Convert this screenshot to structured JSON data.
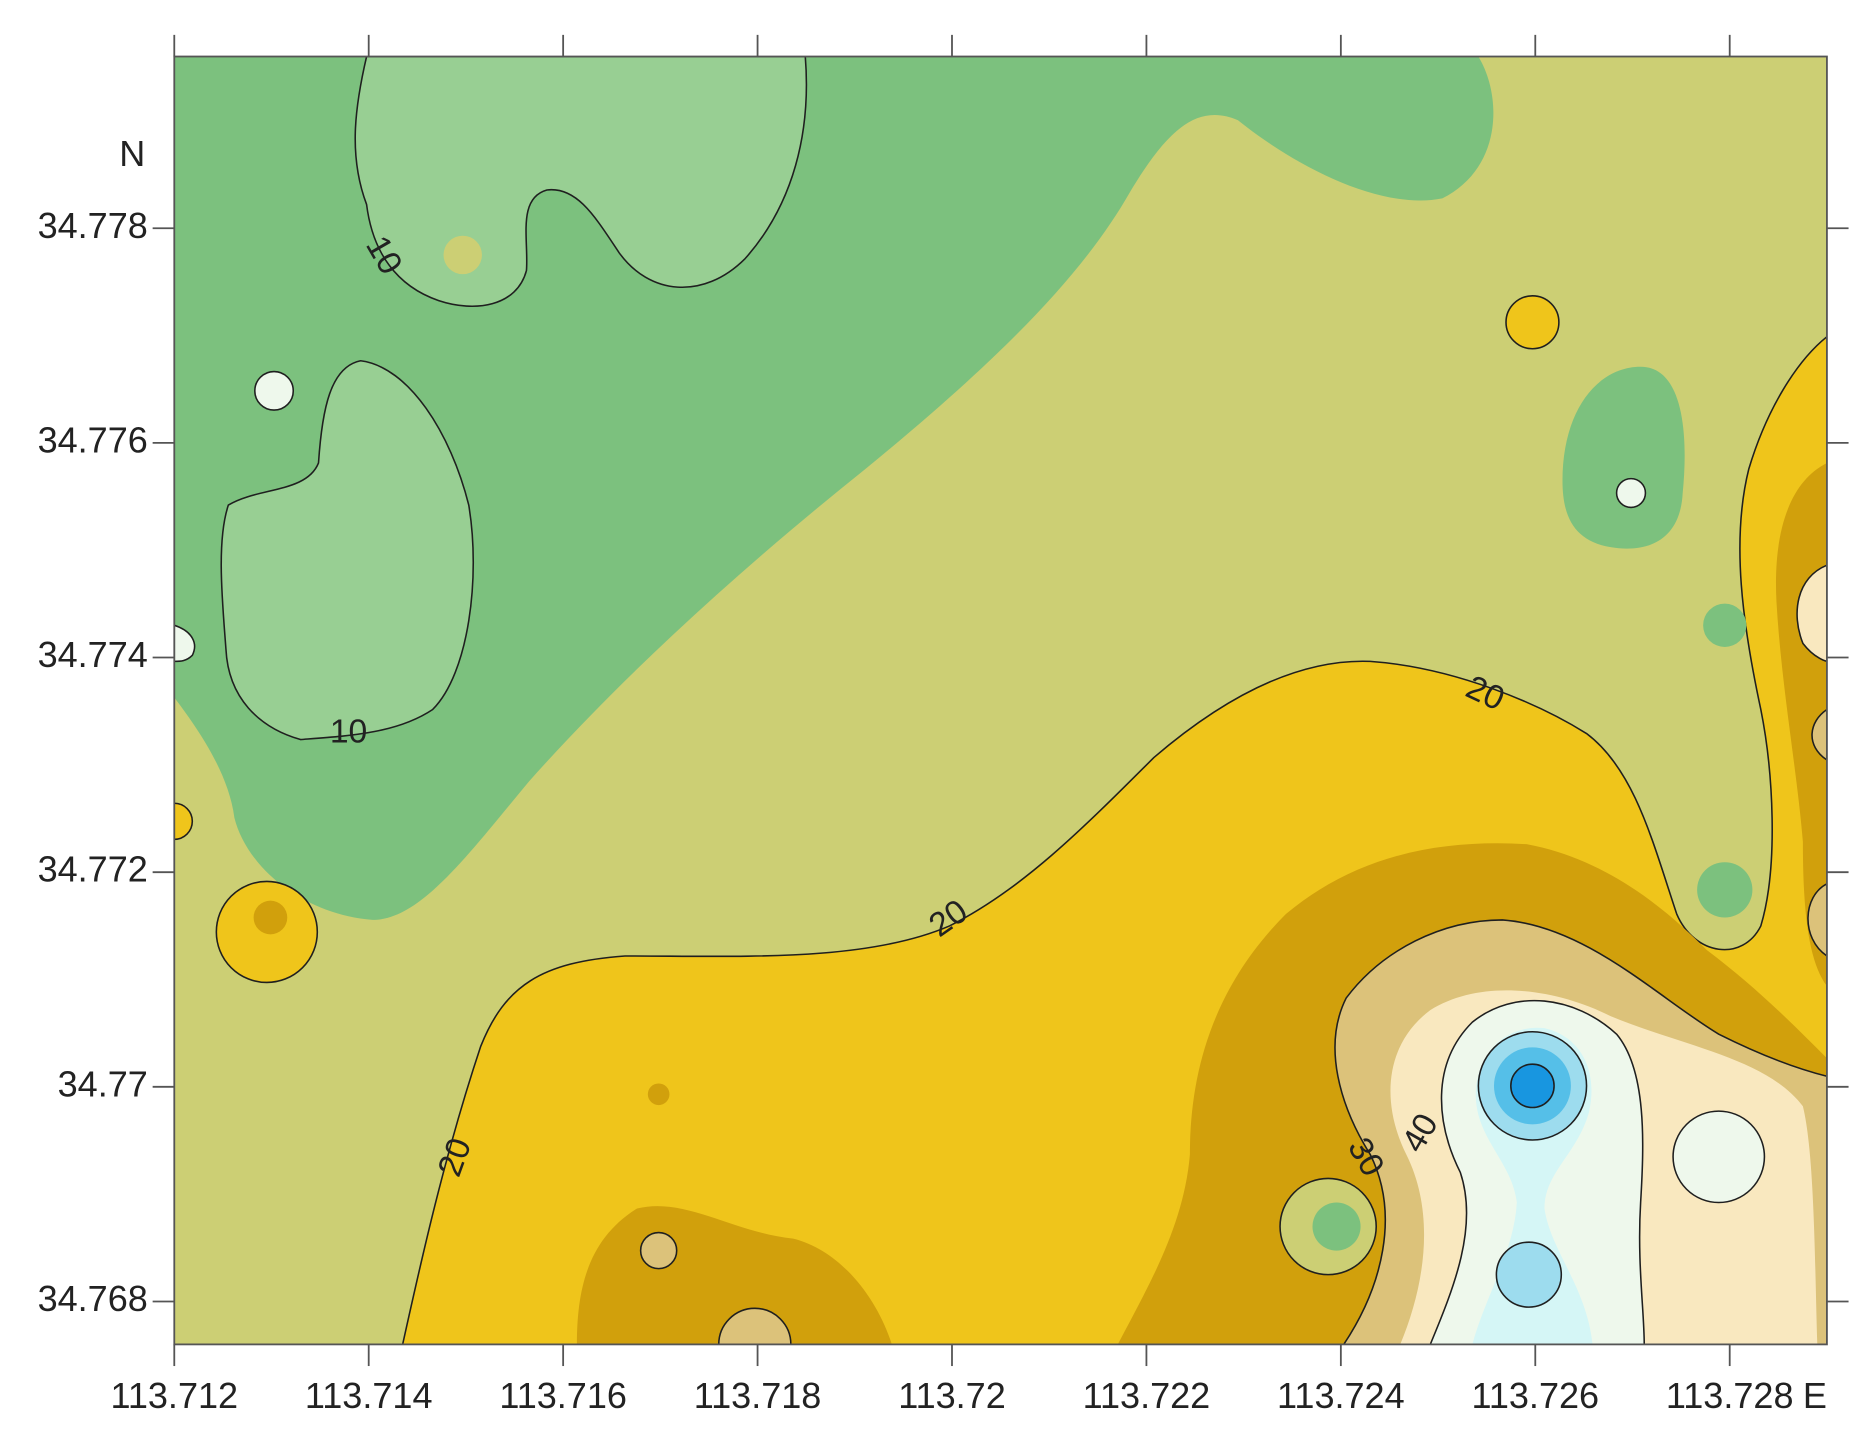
{
  "chart_data": {
    "type": "contour",
    "xlabel": "E",
    "ylabel": "N",
    "xlim": [
      113.712,
      113.729
    ],
    "ylim": [
      34.7676,
      34.7796
    ],
    "xticks": [
      113.712,
      113.714,
      113.716,
      113.718,
      113.72,
      113.722,
      113.724,
      113.726,
      113.728
    ],
    "yticks": [
      34.768,
      34.77,
      34.772,
      34.774,
      34.776,
      34.778
    ],
    "contour_labels": [
      10,
      10,
      20,
      20,
      20,
      30,
      40
    ],
    "palette": {
      "green": "#7cc17e",
      "light_green": "#98cf93",
      "khaki": "#cccf74",
      "yellow": "#efc51b",
      "gold": "#d1a00c",
      "tan": "#dcc27a",
      "cream": "#f9e8bf",
      "pale": "#eef8ec",
      "cyan": "#d5f6f6",
      "light_blue": "#9ddcee",
      "blue": "#55bfe8",
      "dark_blue": "#1896e0"
    }
  }
}
